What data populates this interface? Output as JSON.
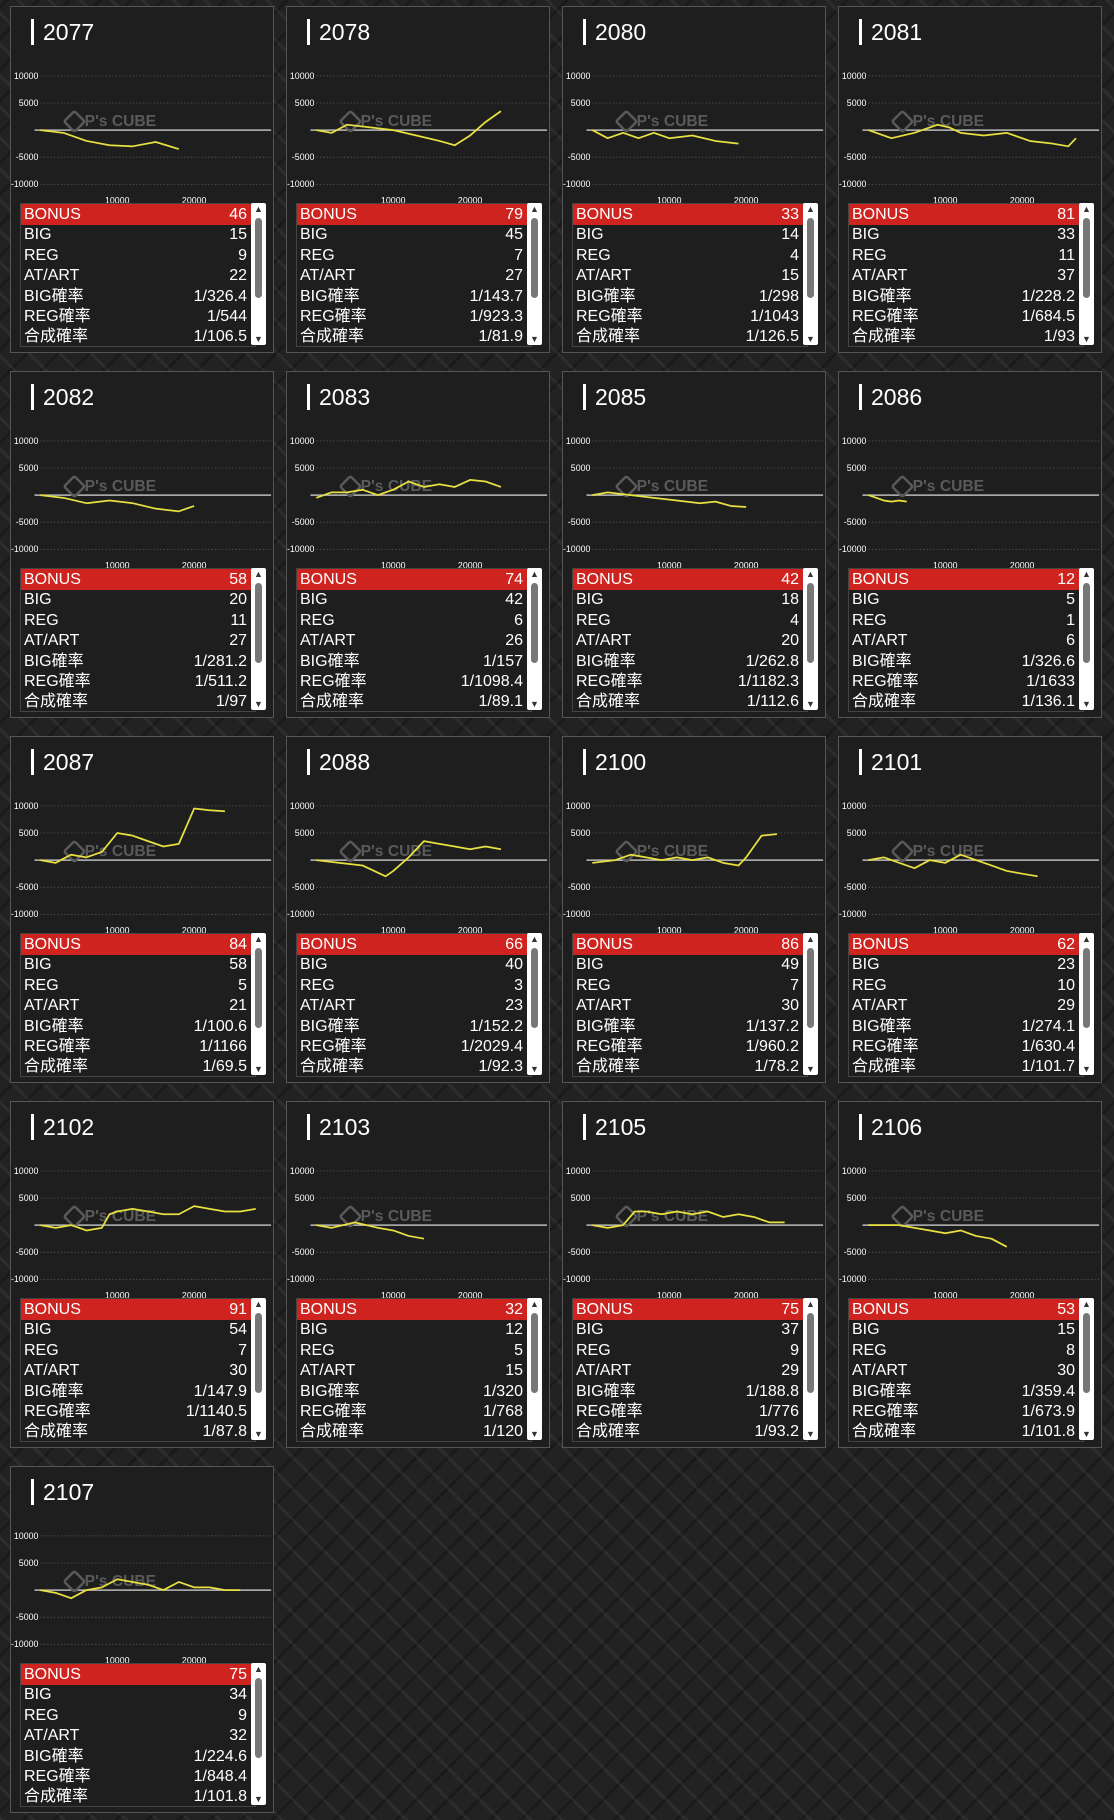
{
  "labels": {
    "bonus": "BONUS",
    "big": "BIG",
    "reg": "REG",
    "at": "AT/ART",
    "big_rate": "BIG確率",
    "reg_rate": "REG確率",
    "combined_rate": "合成確率"
  },
  "watermark": "P's CUBE",
  "colors": {
    "bonus_bar": "#cf2320",
    "graph_line": "#e8e040",
    "card_bg": "#1e1e1e"
  },
  "icons": {
    "scroll_up": "triangle-up-icon",
    "scroll_down": "triangle-down-icon"
  },
  "chart_axes": {
    "x_ticks": [
      10000,
      20000
    ],
    "y_ticks": [
      10000,
      5000,
      -5000,
      -10000
    ],
    "xlim": [
      0,
      30000
    ],
    "ylim": [
      -11000,
      11000
    ]
  },
  "machines": [
    {
      "number": "2077",
      "bonus": "46",
      "big": "15",
      "reg": "9",
      "at": "22",
      "big_rate": "1/326.4",
      "reg_rate": "1/544",
      "combined_rate": "1/106.5",
      "chart_data": {
        "type": "line",
        "x": [
          0,
          3000,
          6000,
          9000,
          12000,
          15000,
          18000
        ],
        "y": [
          0,
          -500,
          -2000,
          -2800,
          -3000,
          -2200,
          -3500
        ]
      }
    },
    {
      "number": "2078",
      "bonus": "79",
      "big": "45",
      "reg": "7",
      "at": "27",
      "big_rate": "1/143.7",
      "reg_rate": "1/923.3",
      "combined_rate": "1/81.9",
      "chart_data": {
        "type": "line",
        "x": [
          0,
          2000,
          4000,
          7000,
          10000,
          13000,
          16000,
          18000,
          20000,
          22000,
          24000
        ],
        "y": [
          0,
          -500,
          1000,
          500,
          0,
          -1000,
          -2000,
          -2800,
          -1000,
          1500,
          3500
        ]
      }
    },
    {
      "number": "2080",
      "bonus": "33",
      "big": "14",
      "reg": "4",
      "at": "15",
      "big_rate": "1/298",
      "reg_rate": "1/1043",
      "combined_rate": "1/126.5",
      "chart_data": {
        "type": "line",
        "x": [
          0,
          2000,
          4000,
          6000,
          8000,
          10000,
          13000,
          16000,
          19000
        ],
        "y": [
          0,
          -1500,
          -500,
          -1500,
          -500,
          -1500,
          -1000,
          -2000,
          -2500
        ]
      }
    },
    {
      "number": "2081",
      "bonus": "81",
      "big": "33",
      "reg": "11",
      "at": "37",
      "big_rate": "1/228.2",
      "reg_rate": "1/684.5",
      "combined_rate": "1/93",
      "chart_data": {
        "type": "line",
        "x": [
          0,
          3000,
          6000,
          9000,
          10500,
          12000,
          15000,
          18000,
          21000,
          24000,
          26000,
          27000
        ],
        "y": [
          0,
          -1500,
          -500,
          1000,
          500,
          -500,
          -1000,
          -500,
          -2000,
          -2500,
          -3000,
          -1500
        ]
      }
    },
    {
      "number": "2082",
      "bonus": "58",
      "big": "20",
      "reg": "11",
      "at": "27",
      "big_rate": "1/281.2",
      "reg_rate": "1/511.2",
      "combined_rate": "1/97",
      "chart_data": {
        "type": "line",
        "x": [
          0,
          3000,
          6000,
          9000,
          12000,
          15000,
          18000,
          20000
        ],
        "y": [
          0,
          -500,
          -1500,
          -1000,
          -1500,
          -2500,
          -3000,
          -2000
        ]
      }
    },
    {
      "number": "2083",
      "bonus": "74",
      "big": "42",
      "reg": "6",
      "at": "26",
      "big_rate": "1/157",
      "reg_rate": "1/1098.4",
      "combined_rate": "1/89.1",
      "chart_data": {
        "type": "line",
        "x": [
          0,
          2000,
          4000,
          6000,
          8000,
          10000,
          12000,
          14000,
          16000,
          18000,
          20000,
          22000,
          24000
        ],
        "y": [
          -500,
          500,
          500,
          1000,
          0,
          1000,
          2500,
          1500,
          2000,
          1500,
          2800,
          2500,
          1500
        ]
      }
    },
    {
      "number": "2085",
      "bonus": "42",
      "big": "18",
      "reg": "4",
      "at": "20",
      "big_rate": "1/262.8",
      "reg_rate": "1/1182.3",
      "combined_rate": "1/112.6",
      "chart_data": {
        "type": "line",
        "x": [
          0,
          2000,
          5000,
          8000,
          11000,
          14000,
          16000,
          18000,
          20000
        ],
        "y": [
          0,
          500,
          0,
          -500,
          -1000,
          -1500,
          -1200,
          -2000,
          -2200
        ]
      }
    },
    {
      "number": "2086",
      "bonus": "12",
      "big": "5",
      "reg": "1",
      "at": "6",
      "big_rate": "1/326.6",
      "reg_rate": "1/1633",
      "combined_rate": "1/136.1",
      "chart_data": {
        "type": "line",
        "x": [
          0,
          2000,
          3000,
          4000,
          5000
        ],
        "y": [
          0,
          -1000,
          -1200,
          -1000,
          -1200
        ]
      }
    },
    {
      "number": "2087",
      "bonus": "84",
      "big": "58",
      "reg": "5",
      "at": "21",
      "big_rate": "1/100.6",
      "reg_rate": "1/1166",
      "combined_rate": "1/69.5",
      "chart_data": {
        "type": "line",
        "x": [
          0,
          2000,
          4000,
          6000,
          8000,
          10000,
          12000,
          14000,
          16000,
          18000,
          20000,
          22000,
          24000
        ],
        "y": [
          0,
          -500,
          1000,
          500,
          1500,
          5000,
          4500,
          3500,
          2500,
          3000,
          9500,
          9200,
          9000
        ]
      }
    },
    {
      "number": "2088",
      "bonus": "66",
      "big": "40",
      "reg": "3",
      "at": "23",
      "big_rate": "1/152.2",
      "reg_rate": "1/2029.4",
      "combined_rate": "1/92.3",
      "chart_data": {
        "type": "line",
        "x": [
          0,
          3000,
          6000,
          9000,
          10000,
          12000,
          14000,
          16000,
          18000,
          20000,
          22000,
          24000
        ],
        "y": [
          0,
          -500,
          -1000,
          -3000,
          -2000,
          500,
          3500,
          3000,
          2500,
          2000,
          2500,
          2000
        ]
      }
    },
    {
      "number": "2100",
      "bonus": "86",
      "big": "49",
      "reg": "7",
      "at": "30",
      "big_rate": "1/137.2",
      "reg_rate": "1/960.2",
      "combined_rate": "1/78.2",
      "chart_data": {
        "type": "line",
        "x": [
          0,
          3000,
          5000,
          7000,
          9000,
          11000,
          13000,
          15000,
          17000,
          19000,
          20000,
          22000,
          24000
        ],
        "y": [
          -500,
          0,
          1000,
          500,
          0,
          500,
          0,
          500,
          -500,
          -1000,
          500,
          4500,
          4800
        ]
      }
    },
    {
      "number": "2101",
      "bonus": "62",
      "big": "23",
      "reg": "10",
      "at": "29",
      "big_rate": "1/274.1",
      "reg_rate": "1/630.4",
      "combined_rate": "1/101.7",
      "chart_data": {
        "type": "line",
        "x": [
          0,
          2000,
          4000,
          6000,
          8000,
          10000,
          12000,
          14000,
          16000,
          18000,
          20000,
          22000
        ],
        "y": [
          0,
          500,
          -500,
          -1500,
          0,
          -500,
          1000,
          0,
          -1000,
          -2000,
          -2500,
          -3000
        ]
      }
    },
    {
      "number": "2102",
      "bonus": "91",
      "big": "54",
      "reg": "7",
      "at": "30",
      "big_rate": "1/147.9",
      "reg_rate": "1/1140.5",
      "combined_rate": "1/87.8",
      "chart_data": {
        "type": "line",
        "x": [
          0,
          2000,
          4000,
          6000,
          8000,
          9000,
          10000,
          12000,
          14000,
          16000,
          18000,
          20000,
          22000,
          24000,
          26000,
          28000
        ],
        "y": [
          0,
          -500,
          0,
          -1000,
          -500,
          2000,
          2500,
          3000,
          2500,
          2000,
          2000,
          3500,
          3000,
          2500,
          2500,
          3000
        ]
      }
    },
    {
      "number": "2103",
      "bonus": "32",
      "big": "12",
      "reg": "5",
      "at": "15",
      "big_rate": "1/320",
      "reg_rate": "1/768",
      "combined_rate": "1/120",
      "chart_data": {
        "type": "line",
        "x": [
          0,
          2000,
          5000,
          8000,
          10000,
          12000,
          14000
        ],
        "y": [
          0,
          -500,
          500,
          -500,
          -1000,
          -2000,
          -2500
        ]
      }
    },
    {
      "number": "2105",
      "bonus": "75",
      "big": "37",
      "reg": "9",
      "at": "29",
      "big_rate": "1/188.8",
      "reg_rate": "1/776",
      "combined_rate": "1/93.2",
      "chart_data": {
        "type": "line",
        "x": [
          0,
          2000,
          4000,
          5500,
          7000,
          9000,
          11000,
          13000,
          15000,
          17000,
          19000,
          21000,
          23000,
          25000
        ],
        "y": [
          0,
          -500,
          0,
          2500,
          2500,
          2000,
          2500,
          2000,
          2500,
          1500,
          2000,
          1500,
          500,
          500
        ]
      }
    },
    {
      "number": "2106",
      "bonus": "53",
      "big": "15",
      "reg": "8",
      "at": "30",
      "big_rate": "1/359.4",
      "reg_rate": "1/673.9",
      "combined_rate": "1/101.8",
      "chart_data": {
        "type": "line",
        "x": [
          0,
          2000,
          4000,
          6000,
          8000,
          10000,
          12000,
          14000,
          16000,
          18000
        ],
        "y": [
          0,
          0,
          0,
          -500,
          -1000,
          -1500,
          -1000,
          -2000,
          -2500,
          -4000
        ]
      }
    },
    {
      "number": "2107",
      "bonus": "75",
      "big": "34",
      "reg": "9",
      "at": "32",
      "big_rate": "1/224.6",
      "reg_rate": "1/848.4",
      "combined_rate": "1/101.8",
      "chart_data": {
        "type": "line",
        "x": [
          0,
          2000,
          4000,
          6000,
          8000,
          10000,
          12000,
          14000,
          16000,
          18000,
          20000,
          22000,
          24000,
          26000
        ],
        "y": [
          0,
          -500,
          -1500,
          0,
          500,
          2000,
          1500,
          1000,
          0,
          1500,
          500,
          500,
          0,
          0
        ]
      }
    }
  ]
}
